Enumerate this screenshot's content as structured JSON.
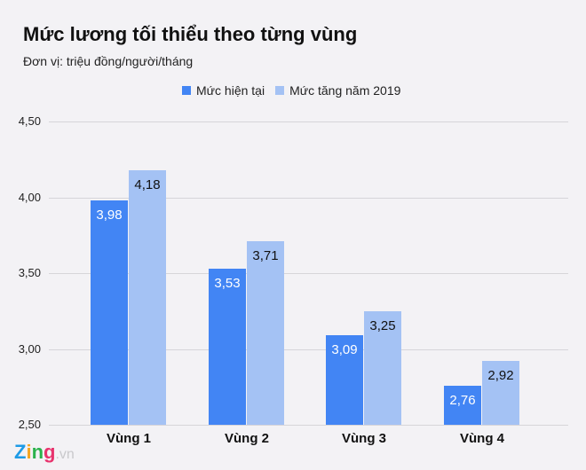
{
  "header": {
    "title": "Mức lương tối thiểu theo từng vùng",
    "subtitle": "Đơn vị: triệu đồng/người/tháng"
  },
  "legend": [
    {
      "label": "Mức hiện tại",
      "color": "#4285f4"
    },
    {
      "label": "Mức tăng năm 2019",
      "color": "#a4c2f4"
    }
  ],
  "yticks": [
    "4,50",
    "4,00",
    "3,50",
    "3,00",
    "2,50"
  ],
  "categories": [
    "Vùng 1",
    "Vùng 2",
    "Vùng 3",
    "Vùng 4"
  ],
  "bar_labels": {
    "current": [
      "3,98",
      "3,53",
      "3,09",
      "2,76"
    ],
    "increase": [
      "4,18",
      "3,71",
      "3,25",
      "2,92"
    ]
  },
  "logo": {
    "brand": "Zing",
    "suffix": ".vn"
  },
  "chart_data": {
    "type": "bar",
    "title": "Mức lương tối thiểu theo từng vùng",
    "subtitle": "Đơn vị: triệu đồng/người/tháng",
    "categories": [
      "Vùng 1",
      "Vùng 2",
      "Vùng 3",
      "Vùng 4"
    ],
    "series": [
      {
        "name": "Mức hiện tại",
        "values": [
          3.98,
          3.53,
          3.09,
          2.76
        ],
        "color": "#4285f4"
      },
      {
        "name": "Mức tăng năm 2019",
        "values": [
          4.18,
          3.71,
          3.25,
          2.92
        ],
        "color": "#a4c2f4"
      }
    ],
    "xlabel": "",
    "ylabel": "",
    "ylim": [
      2.5,
      4.5
    ],
    "yticks": [
      2.5,
      3.0,
      3.5,
      4.0,
      4.5
    ],
    "grid": true,
    "legend_position": "top"
  }
}
